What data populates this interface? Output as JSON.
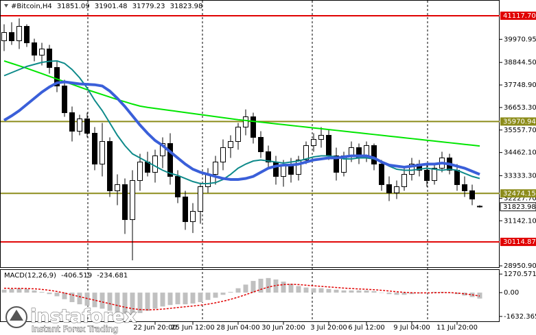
{
  "chart_data": {
    "type": "candlestick",
    "title": "#Bitcoin,H4",
    "categories": [
      null,
      null,
      null,
      null,
      null,
      null,
      null,
      null,
      null,
      null,
      null,
      null,
      null,
      null,
      null,
      null,
      null,
      null,
      null,
      null,
      "22 Jun 20:00",
      null,
      null,
      null,
      null,
      "25 Jun 12:00",
      null,
      null,
      null,
      null,
      null,
      "28 Jun 04:00",
      null,
      null,
      null,
      null,
      null,
      "30 Jun 20:00",
      null,
      null,
      null,
      null,
      null,
      "3 Jul 20:00",
      null,
      null,
      null,
      null,
      "6 Jul 12:00",
      null,
      null,
      null,
      null,
      null,
      "9 Jul 04:00",
      null,
      null,
      null,
      null,
      null,
      "11 Jul 20:00",
      null,
      null,
      null
    ],
    "open": [
      39900,
      40300,
      39900,
      40600,
      39800,
      39200,
      39500,
      38600,
      37700,
      36400,
      35500,
      36100,
      35400,
      33900,
      35000,
      32600,
      32900,
      31200,
      33100,
      34000,
      33500,
      34300,
      34900,
      33300,
      32300,
      31100,
      31600,
      32800,
      33400,
      34000,
      34700,
      35000,
      35700,
      36200,
      35200,
      34500,
      34000,
      33300,
      33800,
      33400,
      34100,
      34800,
      35100,
      35300,
      34300,
      33500,
      34300,
      34700,
      34200,
      34800,
      33900,
      32900,
      32500,
      32800,
      33400,
      33900,
      33600,
      33100,
      33700,
      34200,
      33600,
      32900,
      32600,
      31851.09
    ],
    "high": [
      40700,
      40800,
      40990,
      40700,
      40000,
      39800,
      39700,
      38900,
      38000,
      36700,
      36300,
      36400,
      35700,
      35900,
      35200,
      33400,
      33200,
      33600,
      34400,
      34500,
      34600,
      35200,
      35400,
      33600,
      32600,
      32000,
      33000,
      33700,
      34300,
      35100,
      35300,
      35900,
      36560,
      36400,
      35500,
      34800,
      34300,
      34100,
      34200,
      34300,
      35000,
      35400,
      35700,
      35600,
      34700,
      34500,
      35000,
      34900,
      35000,
      34900,
      34100,
      33300,
      33100,
      33700,
      34200,
      34100,
      33900,
      33900,
      34500,
      34400,
      33900,
      33300,
      32900,
      31901.48
    ],
    "low": [
      39400,
      39700,
      39500,
      39600,
      38900,
      38700,
      38300,
      37400,
      36200,
      35000,
      35300,
      35200,
      33600,
      33300,
      32300,
      31900,
      30500,
      29218,
      32600,
      33300,
      33000,
      33700,
      32900,
      32000,
      30700,
      30549,
      31000,
      32500,
      32900,
      33600,
      34200,
      34600,
      35300,
      34900,
      34200,
      33700,
      32900,
      32800,
      33000,
      33100,
      33900,
      34500,
      34700,
      34100,
      33100,
      33300,
      34000,
      33900,
      34000,
      33600,
      32600,
      32100,
      32200,
      32600,
      33100,
      33300,
      32800,
      32900,
      33500,
      33400,
      32600,
      32300,
      31900,
      31779.23
    ],
    "close": [
      40300,
      39900,
      40600,
      39800,
      39200,
      39500,
      38600,
      37700,
      36400,
      35500,
      36100,
      35400,
      33900,
      35000,
      32600,
      32900,
      31200,
      33100,
      34000,
      33500,
      34300,
      34900,
      33300,
      32300,
      31100,
      31600,
      32800,
      33400,
      34000,
      34700,
      35000,
      35700,
      36200,
      35200,
      34500,
      34000,
      33300,
      33800,
      33400,
      34100,
      34800,
      35100,
      35300,
      34300,
      33500,
      34300,
      34700,
      34200,
      34800,
      33900,
      32900,
      32500,
      32800,
      33400,
      33900,
      33600,
      33100,
      33700,
      34200,
      33600,
      32900,
      32600,
      32200,
      31823.98
    ],
    "up_color": "#ffffff",
    "down_color": "#000000",
    "moving_averages": [
      {
        "color": "#00e600",
        "values": [
          38920,
          38800,
          38680,
          38560,
          38430,
          38300,
          38170,
          38040,
          37910,
          37780,
          37650,
          37520,
          37400,
          37280,
          37160,
          37040,
          36930,
          36820,
          36720,
          36660,
          36610,
          36560,
          36510,
          36460,
          36410,
          36360,
          36310,
          36260,
          36210,
          36160,
          36110,
          36060,
          36020,
          35980,
          35940,
          35900,
          35860,
          35820,
          35780,
          35740,
          35700,
          35660,
          35620,
          35580,
          35540,
          35500,
          35460,
          35420,
          35380,
          35340,
          35300,
          35260,
          35220,
          35180,
          35140,
          35100,
          35060,
          35020,
          34980,
          34940,
          34900,
          34860,
          34820,
          34780
        ]
      },
      {
        "color": "#0e8a8a",
        "values": [
          38200,
          38350,
          38500,
          38650,
          38750,
          38850,
          38900,
          38920,
          38800,
          38500,
          38100,
          37600,
          37000,
          36500,
          35900,
          35300,
          34800,
          34400,
          34200,
          34000,
          33800,
          33600,
          33450,
          33350,
          33200,
          33050,
          32950,
          32950,
          33000,
          33150,
          33400,
          33700,
          33900,
          34050,
          34100,
          34050,
          34000,
          33950,
          34000,
          34050,
          34150,
          34250,
          34300,
          34300,
          34250,
          34150,
          34150,
          34200,
          34200,
          34150,
          34000,
          33800,
          33650,
          33600,
          33600,
          33650,
          33700,
          33650,
          33600,
          33650,
          33600,
          33450,
          33300,
          33200
        ]
      },
      {
        "color": "#3a5fd9",
        "values": [
          36030,
          36250,
          36500,
          36800,
          37100,
          37400,
          37650,
          37850,
          37900,
          37850,
          37800,
          37780,
          37760,
          37700,
          37450,
          37100,
          36700,
          36250,
          35800,
          35400,
          35050,
          34800,
          34500,
          34200,
          33900,
          33650,
          33500,
          33400,
          33300,
          33200,
          33150,
          33150,
          33200,
          33300,
          33500,
          33700,
          33800,
          33850,
          33850,
          33900,
          34000,
          34100,
          34150,
          34200,
          34200,
          34250,
          34300,
          34300,
          34300,
          34200,
          34000,
          33850,
          33800,
          33750,
          33800,
          33850,
          33900,
          33900,
          33950,
          33900,
          33800,
          33700,
          33550,
          33400
        ]
      }
    ],
    "levels": [
      {
        "value": 41117.7,
        "label": "41117.70",
        "color": "#e00000"
      },
      {
        "value": 35970.94,
        "label": "35970.94",
        "color": "#8c8c1a"
      },
      {
        "value": 32474.15,
        "label": "32474.15",
        "color": "#8c8c1a"
      },
      {
        "value": 30114.87,
        "label": "30114.87",
        "color": "#e00000"
      }
    ],
    "ylim": [
      28885,
      41849
    ],
    "yticks": [
      39970.95,
      {
        "value": 38844.5,
        "label": "38844.50"
      },
      {
        "value": 37748.9,
        "label": "37748.90"
      },
      {
        "value": 36653.3,
        "label": "36653.30"
      },
      {
        "value": 35557.7,
        "label": "35557.70"
      },
      {
        "value": 34462.1,
        "label": "34462.10"
      },
      {
        "value": 33333.3,
        "label": "33333.30"
      },
      {
        "value": 32227.7,
        "label": "32227.70"
      },
      {
        "value": 31142.1,
        "label": "31142.10"
      },
      {
        "value": 28950.9,
        "label": "28950.90"
      }
    ],
    "macd": {
      "title": "MACD(12,26,9)",
      "histogram_color": "#c0c0c0",
      "signal_color": "#e00000",
      "histogram": [
        200,
        250,
        300,
        250,
        150,
        50,
        -100,
        -250,
        -450,
        -650,
        -800,
        -900,
        -1000,
        -1100,
        -1250,
        -1350,
        -1450,
        -1500,
        -1400,
        -1250,
        -1100,
        -950,
        -850,
        -800,
        -800,
        -750,
        -650,
        -500,
        -350,
        -150,
        50,
        300,
        550,
        800,
        950,
        1000,
        900,
        750,
        600,
        450,
        350,
        300,
        300,
        250,
        200,
        150,
        150,
        150,
        150,
        100,
        0,
        -100,
        -150,
        -150,
        -100,
        -50,
        0,
        50,
        50,
        0,
        -100,
        -200,
        -300,
        -406.519
      ],
      "signal": [
        300,
        290,
        290,
        280,
        260,
        220,
        160,
        80,
        -30,
        -150,
        -280,
        -400,
        -520,
        -640,
        -760,
        -880,
        -1000,
        -1100,
        -1160,
        -1180,
        -1170,
        -1130,
        -1080,
        -1020,
        -970,
        -920,
        -860,
        -790,
        -700,
        -590,
        -460,
        -310,
        -140,
        40,
        220,
        380,
        490,
        550,
        570,
        550,
        510,
        470,
        430,
        390,
        350,
        310,
        280,
        250,
        230,
        200,
        160,
        110,
        60,
        20,
        -10,
        -20,
        -20,
        -10,
        0,
        0,
        -30,
        -80,
        -150,
        -234.681
      ],
      "ylim": [
        -2013,
        1556
      ],
      "yticks": [
        1270.571,
        {
          "value": 0,
          "label": "0.00"
        },
        -1632.365
      ]
    },
    "watermark": {
      "name": "instaforex",
      "tagline": "Instant Forex Trading"
    }
  }
}
